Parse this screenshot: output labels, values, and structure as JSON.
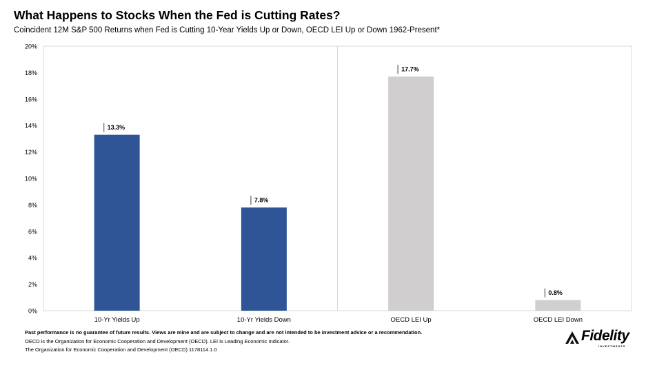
{
  "title": "What Happens to Stocks When the Fed is Cutting Rates?",
  "subtitle": "Coincident 12M S&P 500 Returns  when Fed is Cutting 10-Year Yields Up or Down, OECD LEI Up or Down 1962-Present*",
  "chart_data": {
    "type": "bar",
    "categories": [
      "10-Yr Yields Up",
      "10-Yr Yields Down",
      "OECD LEI Up",
      "OECD LEI Down"
    ],
    "values": [
      13.3,
      7.8,
      17.7,
      0.8
    ],
    "data_labels": [
      "13.3%",
      "7.8%",
      "17.7%",
      "0.8%"
    ],
    "bar_colors": [
      "#2f5597",
      "#2f5597",
      "#d0cece",
      "#d0cece"
    ],
    "y_ticks": [
      "0%",
      "2%",
      "4%",
      "6%",
      "8%",
      "10%",
      "12%",
      "14%",
      "16%",
      "18%",
      "20%"
    ],
    "ylim": [
      0,
      20
    ],
    "grid": false,
    "divider_between_groups": true
  },
  "footer": {
    "disclaimer": "Past performance is no guarantee of future results. Views are mine and are subject to change and are not intended to be investment advice  or a recommendation.",
    "note1": "OECD  is the Organization for Economic Cooperation and Development (OECD). LEI  is Leading Economic Indicator.",
    "note2": "The Organization for Economic Cooperation and Development  (OECD) 1178114.1.0"
  },
  "logo": {
    "wordmark": "Fidelity",
    "tagline": "INVESTMENTS",
    "icon": "fidelity-pyramid-icon"
  }
}
